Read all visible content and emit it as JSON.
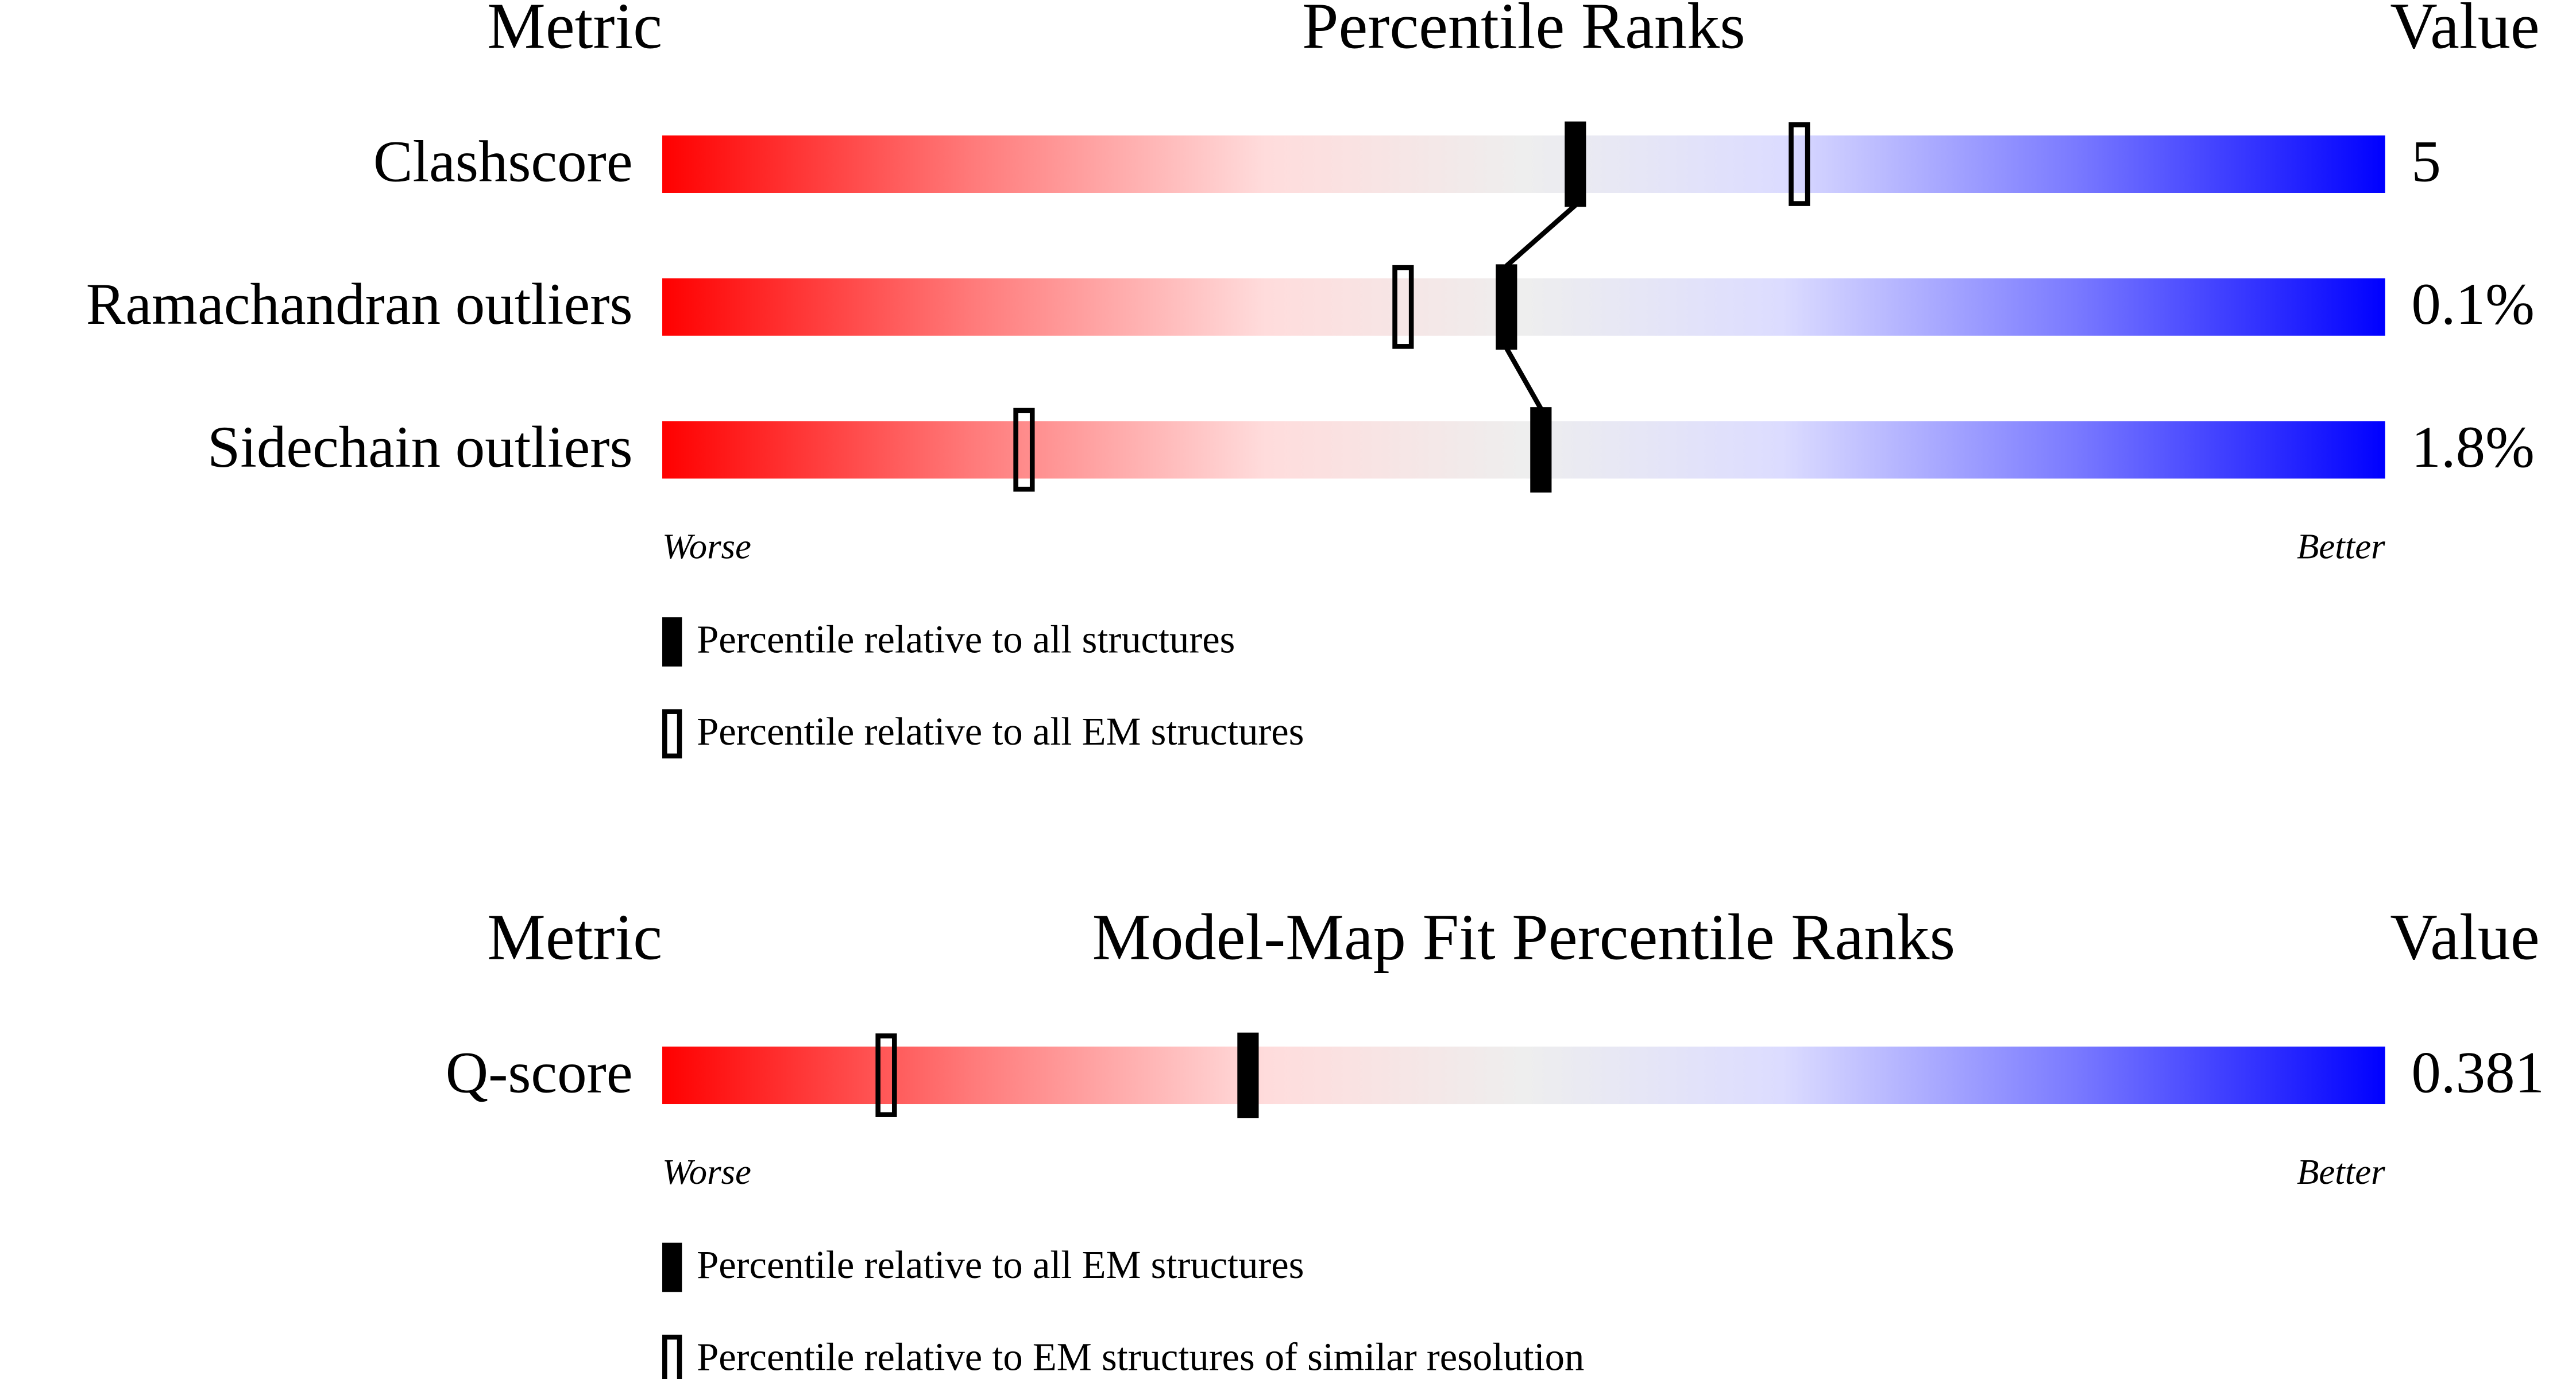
{
  "chart_data": [
    {
      "type": "slider",
      "title": "Percentile Ranks",
      "metric_header": "Metric",
      "value_header": "Value",
      "categories": [
        "Clashscore",
        "Ramachandran outliers",
        "Sidechain outliers"
      ],
      "metric_values": [
        "5",
        "0.1%",
        "1.8%"
      ],
      "series": [
        {
          "name": "Percentile relative to all structures",
          "style": "filled",
          "color": "#000000",
          "values": [
            53,
            49,
            51
          ]
        },
        {
          "name": "Percentile relative to all EM structures",
          "style": "hollow",
          "color": "#000000",
          "values": [
            66,
            43,
            21
          ]
        }
      ],
      "xlim": [
        0,
        100
      ],
      "worse_label": "Worse",
      "better_label": "Better"
    },
    {
      "type": "slider",
      "title": "Model-Map Fit Percentile Ranks",
      "metric_header": "Metric",
      "value_header": "Value",
      "categories": [
        "Q-score"
      ],
      "metric_values": [
        "0.381"
      ],
      "series": [
        {
          "name": "Percentile relative to all EM structures",
          "style": "filled",
          "color": "#000000",
          "values": [
            34
          ]
        },
        {
          "name": "Percentile relative to EM structures of similar resolution",
          "style": "hollow",
          "color": "#000000",
          "values": [
            13
          ]
        }
      ],
      "xlim": [
        0,
        100
      ],
      "worse_label": "Worse",
      "better_label": "Better"
    }
  ]
}
